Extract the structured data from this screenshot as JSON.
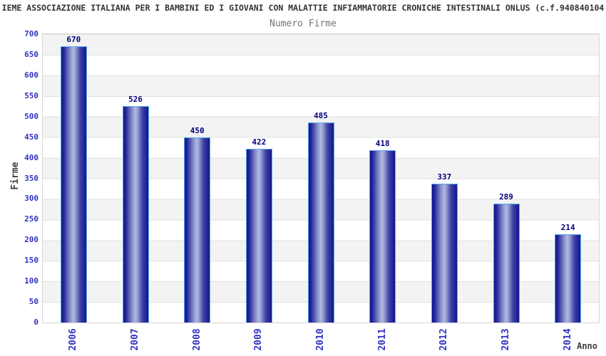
{
  "header": {
    "title": "IEME ASSOCIAZIONE ITALIANA PER I BAMBINI ED I GIOVANI CON MALATTIE INFIAMMATORIE CRONICHE INTESTINALI ONLUS (c.f.940840104",
    "subtitle": "Numero Firme"
  },
  "chart_data": {
    "type": "bar",
    "title": "Numero Firme",
    "categories": [
      "2006",
      "2007",
      "2008",
      "2009",
      "2010",
      "2011",
      "2012",
      "2013",
      "2014"
    ],
    "values": [
      670,
      526,
      450,
      422,
      485,
      418,
      337,
      289,
      214
    ],
    "xlabel": "Anno",
    "ylabel": "Firme",
    "ylim": [
      0,
      700
    ],
    "ytick_step": 50,
    "grid": true,
    "band_fill": true,
    "legend_position": "none",
    "bar_labels_shown": true
  },
  "colors": {
    "tick_label": "#3232c8",
    "value_label": "#00007e",
    "bar_dark": "#15158c",
    "bar_light": "#b0b8e2",
    "bar_border": "#58a8f0",
    "band": "#f3f3f3",
    "gridline": "#e2e2e2",
    "title_text": "#333333",
    "subtitle_text": "#757575",
    "axis_title_text": "#3d3d3d"
  }
}
